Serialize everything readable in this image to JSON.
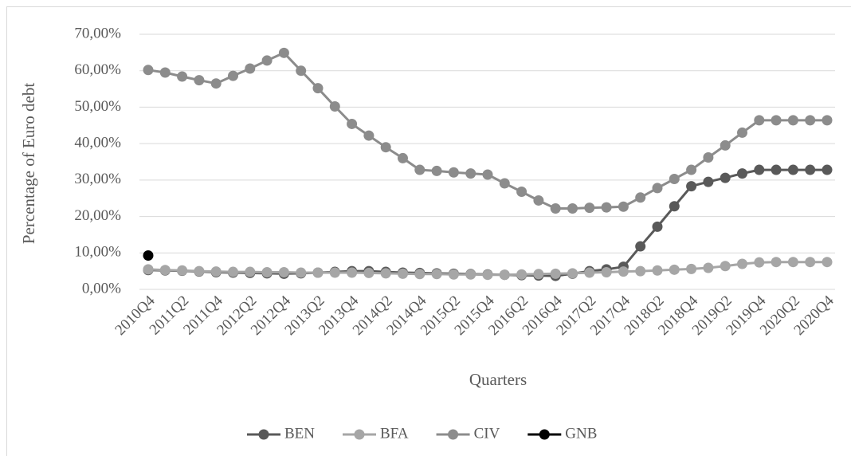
{
  "chart_data": {
    "type": "line",
    "x_label": "Quarters",
    "y_label": "Percentage of Euro debt",
    "categories": [
      "2010Q4",
      null,
      "2011Q2",
      null,
      "2011Q4",
      null,
      "2012Q2",
      null,
      "2012Q4",
      null,
      "2013Q2",
      null,
      "2013Q4",
      null,
      "2014Q2",
      null,
      "2014Q4",
      null,
      "2015Q2",
      null,
      "2015Q4",
      null,
      "2016Q2",
      null,
      "2016Q4",
      null,
      "2017Q2",
      null,
      "2017Q4",
      null,
      "2018Q2",
      null,
      "2018Q4",
      null,
      "2019Q2",
      null,
      "2019Q4",
      null,
      "2020Q2",
      null,
      "2020Q4"
    ],
    "series": [
      {
        "name": "BEN",
        "color": "#595959",
        "values": [
          5.3,
          5.2,
          5.1,
          4.9,
          4.7,
          4.6,
          4.5,
          4.4,
          4.3,
          4.4,
          4.6,
          4.8,
          5.0,
          5.0,
          4.8,
          4.6,
          4.5,
          4.4,
          4.3,
          4.2,
          4.1,
          4.0,
          3.9,
          3.8,
          3.7,
          4.3,
          5.0,
          5.5,
          6.2,
          11.8,
          17.2,
          22.8,
          28.3,
          29.5,
          30.6,
          31.8,
          32.8,
          32.8,
          32.8,
          32.8,
          32.8
        ]
      },
      {
        "name": "BFA",
        "color": "#a6a6a6",
        "values": [
          5.5,
          5.3,
          5.2,
          5.0,
          4.9,
          4.8,
          4.8,
          4.7,
          4.7,
          4.6,
          4.6,
          4.6,
          4.6,
          4.5,
          4.4,
          4.3,
          4.2,
          4.2,
          4.1,
          4.1,
          4.0,
          4.0,
          4.1,
          4.2,
          4.3,
          4.4,
          4.6,
          4.7,
          4.9,
          5.0,
          5.2,
          5.4,
          5.6,
          5.9,
          6.4,
          7.0,
          7.4,
          7.5,
          7.5,
          7.5,
          7.5
        ]
      },
      {
        "name": "CIV",
        "color": "#8c8c8c",
        "values": [
          60.2,
          59.5,
          58.4,
          57.4,
          56.5,
          58.6,
          60.6,
          62.8,
          64.9,
          60.0,
          55.2,
          50.2,
          45.4,
          42.2,
          39.0,
          36.0,
          32.8,
          32.5,
          32.1,
          31.8,
          31.5,
          29.1,
          26.8,
          24.4,
          22.2,
          22.2,
          22.4,
          22.5,
          22.7,
          25.2,
          27.8,
          30.3,
          32.8,
          36.2,
          39.5,
          43.0,
          46.4,
          46.4,
          46.4,
          46.4,
          46.4
        ]
      },
      {
        "name": "GNB",
        "color": "#000000",
        "values": [
          9.3,
          null,
          null,
          null,
          null,
          null,
          null,
          null,
          null,
          null,
          null,
          null,
          null,
          null,
          null,
          null,
          null,
          null,
          null,
          null,
          null,
          null,
          null,
          null,
          null,
          null,
          null,
          null,
          null,
          null,
          null,
          null,
          null,
          null,
          null,
          null,
          null,
          null,
          null,
          null,
          null
        ]
      }
    ],
    "ylim": [
      0,
      70
    ],
    "yticks": [
      {
        "value": 0,
        "label": "0,00%"
      },
      {
        "value": 10,
        "label": "10,00%"
      },
      {
        "value": 20,
        "label": "20,00%"
      },
      {
        "value": 30,
        "label": "30,00%"
      },
      {
        "value": 40,
        "label": "40,00%"
      },
      {
        "value": 50,
        "label": "50,00%"
      },
      {
        "value": 60,
        "label": "60,00%"
      },
      {
        "value": 70,
        "label": "70,00%"
      }
    ],
    "grid": true,
    "legend": "bottom"
  }
}
